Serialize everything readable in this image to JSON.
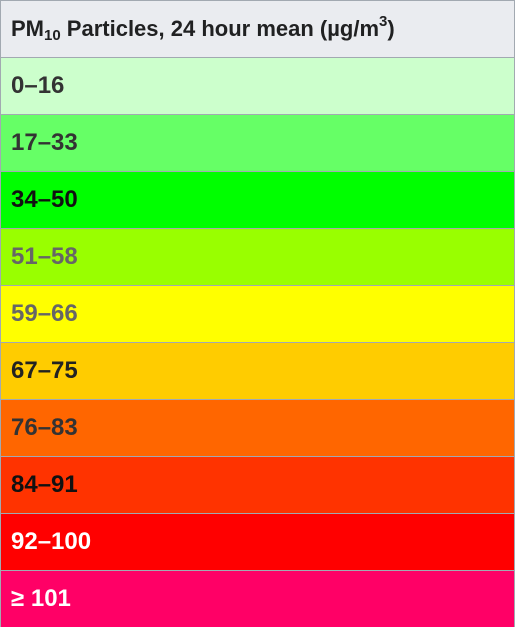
{
  "header": {
    "pm": "PM",
    "sub": "10",
    "main": " Particles, 24 hour mean (µg/m",
    "sup": "3",
    "close": ")"
  },
  "bands": [
    {
      "range": "0–16",
      "bg": "#ccffcc",
      "fg": "#333333"
    },
    {
      "range": "17–33",
      "bg": "#66ff66",
      "fg": "#333333"
    },
    {
      "range": "34–50",
      "bg": "#00ff00",
      "fg": "#111111"
    },
    {
      "range": "51–58",
      "bg": "#99ff00",
      "fg": "#666666"
    },
    {
      "range": "59–66",
      "bg": "#ffff00",
      "fg": "#666666"
    },
    {
      "range": "67–75",
      "bg": "#ffcc00",
      "fg": "#222222"
    },
    {
      "range": "76–83",
      "bg": "#ff6600",
      "fg": "#333333"
    },
    {
      "range": "84–91",
      "bg": "#ff3300",
      "fg": "#111111"
    },
    {
      "range": "92–100",
      "bg": "#ff0000",
      "fg": "#ffffff"
    },
    {
      "range": "≥ 101",
      "bg": "#ff0066",
      "fg": "#ffffff"
    }
  ]
}
